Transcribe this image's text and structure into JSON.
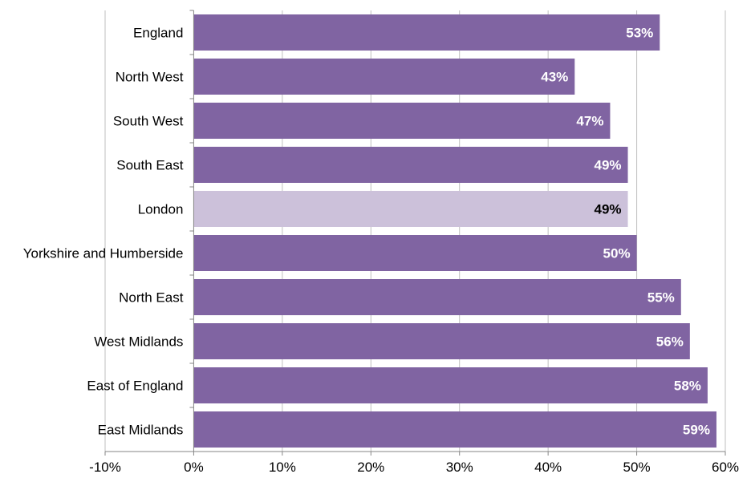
{
  "chart_data": {
    "type": "bar",
    "orientation": "horizontal",
    "categories": [
      "England",
      "North West",
      "South West",
      "South East",
      "London",
      "Yorkshire and Humberside",
      "North East",
      "West Midlands",
      "East of England",
      "East Midlands"
    ],
    "values": [
      52.6,
      43,
      47,
      49,
      49,
      50,
      55,
      56,
      58,
      59
    ],
    "data_labels": [
      "53%",
      "43%",
      "47%",
      "49%",
      "49%",
      "50%",
      "55%",
      "56%",
      "58%",
      "59%"
    ],
    "highlight_index": 4,
    "xlim": [
      -10,
      60
    ],
    "x_ticks": [
      -10,
      0,
      10,
      20,
      30,
      40,
      50,
      60
    ],
    "x_tick_labels": [
      "-10%",
      "0%",
      "10%",
      "20%",
      "30%",
      "40%",
      "50%",
      "60%"
    ],
    "grid": "vertical",
    "legend": "none",
    "title": "",
    "xlabel": "",
    "ylabel": "",
    "colors": {
      "bar": "#8064a2",
      "bar_highlight": "#ccc1da",
      "label_on_bar": "#ffffff",
      "label_on_highlight": "#000000",
      "grid": "#bfbfbf",
      "axis": "#868686"
    }
  }
}
